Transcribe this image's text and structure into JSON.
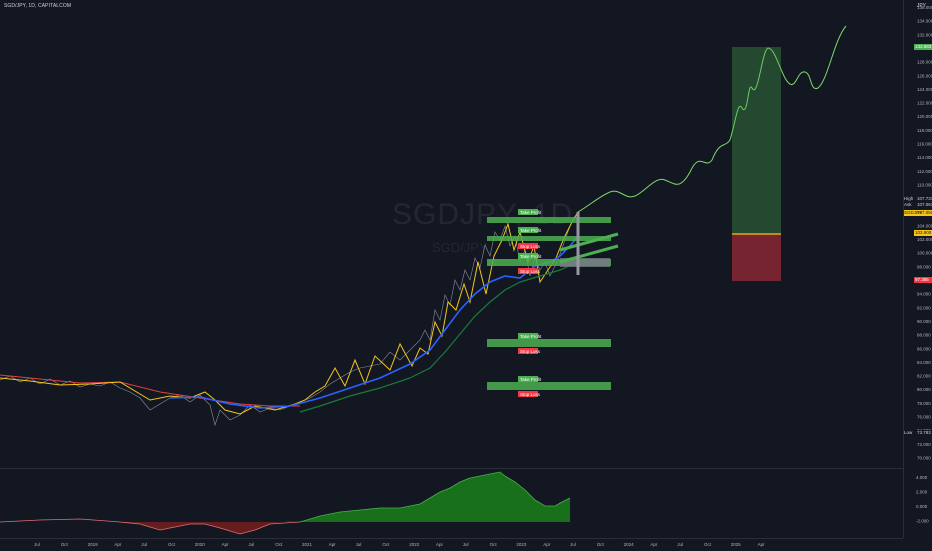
{
  "header": {
    "symbol_title": "SGD/JPY, 1D, CAPITALCOM",
    "currency": "JPY"
  },
  "watermark": {
    "symbol": "SGDJPY, 1D",
    "description": "SGD/JPY"
  },
  "price_axis": {
    "ticks": [
      "136.000",
      "134.000",
      "132.000",
      "130.000",
      "128.000",
      "126.000",
      "124.000",
      "122.000",
      "120.000",
      "118.000",
      "116.000",
      "114.000",
      "112.000",
      "110.000",
      "108.000",
      "106.000",
      "104.000",
      "102.000",
      "100.000",
      "98.000",
      "96.000",
      "94.000",
      "92.000",
      "90.000",
      "88.000",
      "86.000",
      "84.000",
      "82.000",
      "80.000",
      "78.000",
      "76.000",
      "74.000",
      "72.000",
      "70.000"
    ],
    "tags": [
      {
        "label": "133.883",
        "color": "#4caf50",
        "text_color": "#ffffff"
      },
      {
        "label": "High",
        "color": "#131722",
        "text_color": "#d1d4dc",
        "value": "107.737"
      },
      {
        "label": "Ask",
        "color": "#131722",
        "text_color": "#d1d4dc",
        "value": "107.067"
      },
      {
        "label": "SGDJPY",
        "color": "#f5c518",
        "text_color": "#131722",
        "value": "107.050"
      },
      {
        "label": "103.900",
        "color": "#f5c518",
        "text_color": "#131722"
      },
      {
        "label": "97.385",
        "color": "#f23645",
        "text_color": "#ffffff"
      },
      {
        "label": "Low",
        "color": "#131722",
        "text_color": "#d1d4dc",
        "value": "73.783"
      }
    ]
  },
  "oscillator_axis": {
    "ticks": [
      "4.000",
      "2.000",
      "0.000",
      "-2.000"
    ]
  },
  "time_axis": {
    "labels": [
      "Jul",
      "Oct",
      "2019",
      "Apr",
      "Jul",
      "Oct",
      "2020",
      "Apr",
      "Jul",
      "Oct",
      "2021",
      "Apr",
      "Jul",
      "Oct",
      "2022",
      "Apr",
      "Jul",
      "Oct",
      "2023",
      "Apr",
      "Jul",
      "Oct",
      "2024",
      "Apr",
      "Jul",
      "Oct",
      "2025",
      "Apr"
    ]
  },
  "annotations": {
    "tp_label": "Take Profit",
    "sl_label": "Stop Loss"
  },
  "colors": {
    "background": "#131722",
    "ma_fast": "#f5c518",
    "ma_mid": "#2962ff",
    "ma_slow": "#1b7a3a",
    "ma_red": "#e04040",
    "projection": "#7fd86b",
    "zone_green": "#4caf50",
    "long_profit": "rgba(76,175,80,0.35)",
    "long_loss": "rgba(242,54,69,0.45)"
  }
}
